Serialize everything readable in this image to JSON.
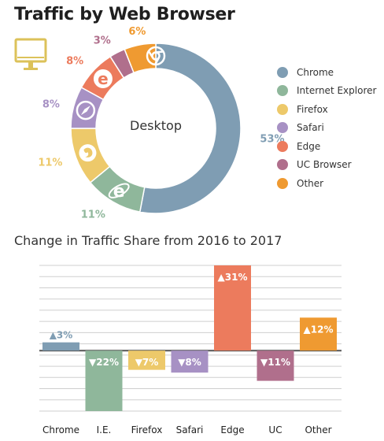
{
  "title": "Traffic by Web Browser",
  "icons": {
    "monitor": "desktop-monitor-icon"
  },
  "chart_data": [
    {
      "type": "pie",
      "center_label": "Desktop",
      "slices": [
        {
          "name": "Chrome",
          "value": 53,
          "label": "53%",
          "color": "#7f9db3",
          "icon": "chrome-icon"
        },
        {
          "name": "Internet Explorer",
          "value": 11,
          "label": "11%",
          "color": "#8fb79b",
          "icon": "internet-explorer-icon"
        },
        {
          "name": "Firefox",
          "value": 11,
          "label": "11%",
          "color": "#edc96a",
          "icon": "firefox-icon"
        },
        {
          "name": "Safari",
          "value": 8,
          "label": "8%",
          "color": "#a791c4",
          "icon": "safari-icon"
        },
        {
          "name": "Edge",
          "value": 8,
          "label": "8%",
          "color": "#ec7b5d",
          "icon": "edge-icon"
        },
        {
          "name": "UC Browser",
          "value": 3,
          "label": "3%",
          "color": "#b06f8c",
          "icon": ""
        },
        {
          "name": "Other",
          "value": 6,
          "label": "6%",
          "color": "#ef9a31",
          "icon": ""
        }
      ],
      "legend": [
        "Chrome",
        "Internet Explorer",
        "Firefox",
        "Safari",
        "Edge",
        "UC Browser",
        "Other"
      ],
      "legend_position": "right"
    },
    {
      "type": "bar",
      "title": "Change in Traffic Share from 2016 to 2017",
      "categories": [
        "Chrome",
        "I.E.",
        "Firefox",
        "Safari",
        "Edge",
        "UC",
        "Other"
      ],
      "values": [
        3,
        -22,
        -7,
        -8,
        31,
        -11,
        12
      ],
      "value_labels": [
        "▲3%",
        "▼22%",
        "▼7%",
        "▼8%",
        "▲31%",
        "▼11%",
        "▲12%"
      ],
      "colors": [
        "#7f9db3",
        "#8fb79b",
        "#edc96a",
        "#a791c4",
        "#ec7b5d",
        "#b06f8c",
        "#ef9a31"
      ],
      "ylim": [
        -22,
        31
      ],
      "grid": true
    }
  ]
}
